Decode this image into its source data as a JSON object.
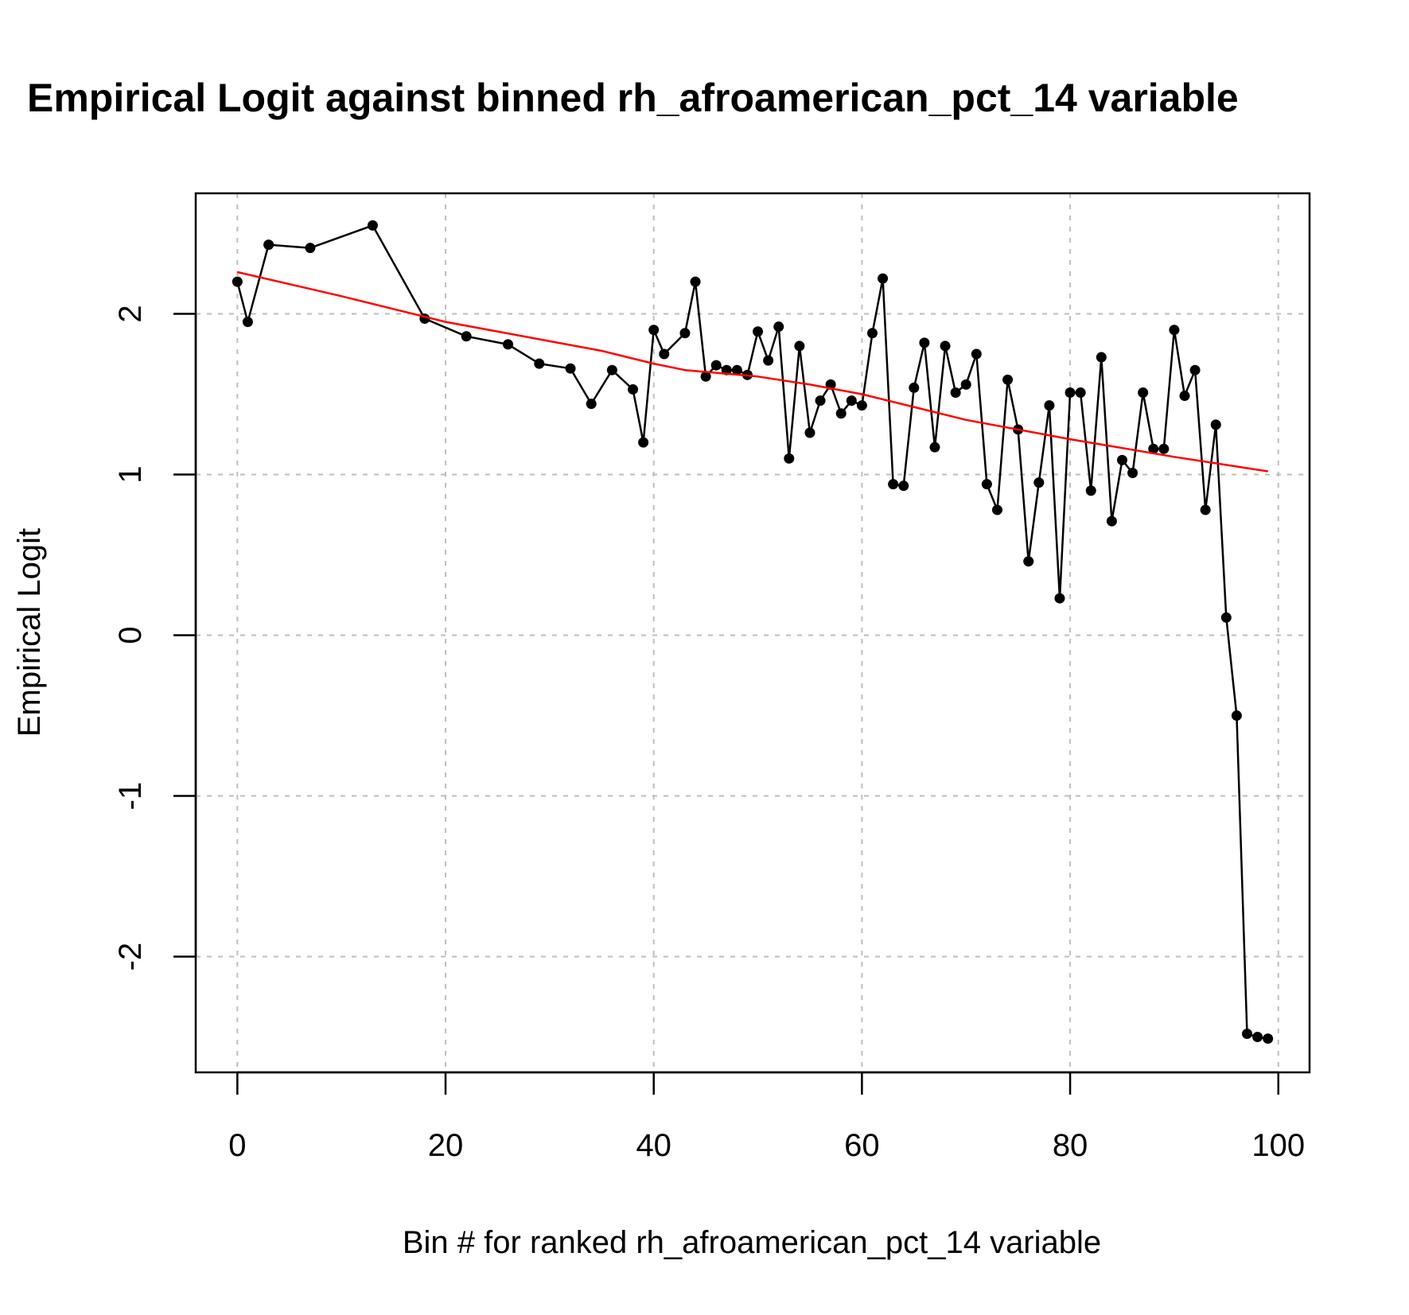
{
  "chart_data": {
    "type": "line",
    "title": "Empirical Logit against binned rh_afroamerican_pct_14 variable",
    "xlabel": "Bin # for ranked rh_afroamerican_pct_14 variable",
    "ylabel": "Empirical Logit",
    "xlim": [
      -4,
      103
    ],
    "ylim": [
      -2.72,
      2.75
    ],
    "x_ticks": [
      0,
      20,
      40,
      60,
      80,
      100
    ],
    "y_ticks": [
      -2,
      -1,
      0,
      1,
      2
    ],
    "x_tick_labels": [
      "0",
      "20",
      "40",
      "60",
      "80",
      "100"
    ],
    "y_tick_labels": [
      "-2",
      "-1",
      "0",
      "1",
      "2"
    ],
    "grid": true,
    "colors": {
      "observed": "#000000",
      "smooth": "#ff0000",
      "grid": "#bebebe"
    },
    "series": [
      {
        "style": "line-with-points",
        "color": "#000000",
        "x": [
          0,
          1,
          3,
          7,
          13,
          18,
          22,
          26,
          29,
          32,
          34,
          36,
          38,
          39,
          40,
          41,
          43,
          44,
          45,
          46,
          47,
          48,
          49,
          50,
          51,
          52,
          53,
          54,
          55,
          56,
          57,
          58,
          59,
          60,
          61,
          62,
          63,
          64,
          65,
          66,
          67,
          68,
          69,
          70,
          71,
          72,
          73,
          74,
          75,
          76,
          77,
          78,
          79,
          80,
          81,
          82,
          83,
          84,
          85,
          86,
          87,
          88,
          89,
          90,
          91,
          92,
          93,
          94,
          95,
          96,
          97,
          98,
          99
        ],
        "y": [
          2.2,
          1.95,
          2.43,
          2.41,
          2.55,
          1.97,
          1.86,
          1.81,
          1.69,
          1.66,
          1.44,
          1.65,
          1.53,
          1.2,
          1.9,
          1.75,
          1.88,
          2.2,
          1.61,
          1.68,
          1.65,
          1.65,
          1.62,
          1.89,
          1.71,
          1.92,
          1.1,
          1.8,
          1.26,
          1.46,
          1.56,
          1.38,
          1.46,
          1.43,
          1.88,
          2.22,
          0.94,
          0.93,
          1.54,
          1.82,
          1.17,
          1.8,
          1.51,
          1.56,
          1.75,
          0.94,
          0.78,
          1.59,
          1.28,
          0.46,
          0.95,
          1.43,
          0.23,
          1.51,
          1.51,
          0.9,
          1.73,
          0.71,
          1.09,
          1.01,
          1.51,
          1.16,
          1.16,
          1.9,
          1.49,
          1.65,
          0.78,
          1.31,
          0.11,
          -0.5,
          -2.48,
          -2.5,
          -2.51
        ]
      },
      {
        "style": "line",
        "color": "#ff0000",
        "x": [
          0,
          10,
          20,
          30,
          35,
          40,
          43,
          50,
          55,
          60,
          70,
          80,
          90,
          99
        ],
        "y": [
          2.26,
          2.11,
          1.95,
          1.83,
          1.77,
          1.69,
          1.65,
          1.61,
          1.56,
          1.5,
          1.34,
          1.22,
          1.11,
          1.02
        ]
      }
    ]
  }
}
